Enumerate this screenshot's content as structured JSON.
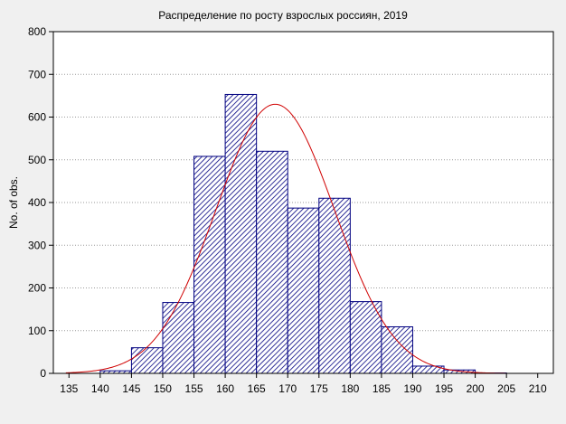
{
  "chart_data": {
    "type": "bar",
    "title": "Распределение по росту взрослых россиян, 2019",
    "xlabel": "",
    "ylabel": "No. of obs.",
    "xlim": [
      132.5,
      212.5
    ],
    "ylim": [
      0,
      800
    ],
    "x_ticks": [
      135,
      140,
      145,
      150,
      155,
      160,
      165,
      170,
      175,
      180,
      185,
      190,
      195,
      200,
      205,
      210
    ],
    "y_ticks": [
      0,
      100,
      200,
      300,
      400,
      500,
      600,
      700,
      800
    ],
    "bin_width": 5,
    "bins": [
      {
        "start": 135,
        "end": 140,
        "value": 0
      },
      {
        "start": 140,
        "end": 145,
        "value": 6
      },
      {
        "start": 145,
        "end": 150,
        "value": 60
      },
      {
        "start": 150,
        "end": 155,
        "value": 166
      },
      {
        "start": 155,
        "end": 160,
        "value": 508
      },
      {
        "start": 160,
        "end": 165,
        "value": 653
      },
      {
        "start": 165,
        "end": 170,
        "value": 520
      },
      {
        "start": 170,
        "end": 175,
        "value": 387
      },
      {
        "start": 175,
        "end": 180,
        "value": 410
      },
      {
        "start": 180,
        "end": 185,
        "value": 168
      },
      {
        "start": 185,
        "end": 190,
        "value": 109
      },
      {
        "start": 190,
        "end": 195,
        "value": 17
      },
      {
        "start": 195,
        "end": 200,
        "value": 8
      },
      {
        "start": 200,
        "end": 205,
        "value": 1
      }
    ],
    "normal_curve": {
      "mean": 168,
      "peak": 630,
      "sd": 9.5
    },
    "colors": {
      "bar_fill": "#ffffff",
      "bar_hatch": "#000080",
      "bar_stroke": "#000080",
      "curve": "#d00000",
      "grid": "#9a9a9a",
      "axis": "#000000",
      "background": "#f0f0f0",
      "plot_background": "#ffffff"
    },
    "grid": true,
    "legend": "none"
  }
}
